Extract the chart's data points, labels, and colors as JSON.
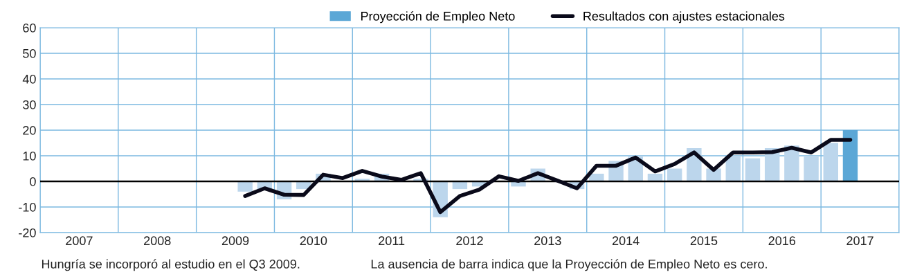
{
  "chart_data": {
    "type": "bar",
    "x": [
      2009.625,
      2009.875,
      2010.125,
      2010.375,
      2010.625,
      2010.875,
      2011.125,
      2011.375,
      2011.625,
      2011.875,
      2012.125,
      2012.375,
      2012.625,
      2012.875,
      2013.125,
      2013.375,
      2013.625,
      2013.875,
      2014.125,
      2014.375,
      2014.625,
      2014.875,
      2015.125,
      2015.375,
      2015.625,
      2015.875,
      2016.125,
      2016.375,
      2016.625,
      2016.875,
      2017.125,
      2017.375
    ],
    "series": [
      {
        "name": "Proyección de Empleo Neto",
        "color": "#5ba7d6",
        "colors": [
          "#bcd6ec",
          "#bcd6ec",
          "#bcd6ec",
          "#bcd6ec",
          "#bcd6ec",
          "#bcd6ec",
          "#bcd6ec",
          "#bcd6ec",
          "#bcd6ec",
          "#bcd6ec",
          "#bcd6ec",
          "#bcd6ec",
          "#bcd6ec",
          "#bcd6ec",
          "#bcd6ec",
          "#bcd6ec",
          "#bcd6ec",
          "#bcd6ec",
          "#bcd6ec",
          "#bcd6ec",
          "#bcd6ec",
          "#bcd6ec",
          "#bcd6ec",
          "#bcd6ec",
          "#bcd6ec",
          "#bcd6ec",
          "#bcd6ec",
          "#bcd6ec",
          "#bcd6ec",
          "#bcd6ec",
          "#bcd6ec",
          "#5ba7d6"
        ],
        "values": [
          -4,
          -3,
          -7,
          -3,
          3,
          null,
          1,
          3,
          0,
          1,
          -14,
          -3,
          -2,
          null,
          -2,
          5,
          0,
          -3,
          3,
          8,
          10,
          3,
          5,
          13,
          5,
          10,
          9,
          13,
          14,
          10,
          15,
          20
        ]
      },
      {
        "name": "Resultados con ajustes estacionales",
        "type": "line",
        "color": "#0a0a1a",
        "values": [
          -5.7,
          -2.7,
          -5.2,
          -5.3,
          2.6,
          1.3,
          4.1,
          1.9,
          0.6,
          3.2,
          -12,
          -5.7,
          -3.2,
          2,
          0.2,
          3.2,
          0.3,
          -2.7,
          6.1,
          6.1,
          9.3,
          3.9,
          6.8,
          11.3,
          4.5,
          11.3,
          11.3,
          11.4,
          13.1,
          11.3,
          16.2,
          16.2
        ]
      }
    ],
    "xlim": [
      2007,
      2018
    ],
    "xticks": [
      {
        "value": 2007,
        "label": null
      },
      {
        "value": 2007.5,
        "label": "2007"
      },
      {
        "value": 2008,
        "label": null
      },
      {
        "value": 2008.5,
        "label": "2008"
      },
      {
        "value": 2009,
        "label": null
      },
      {
        "value": 2009.5,
        "label": "2009"
      },
      {
        "value": 2010,
        "label": null
      },
      {
        "value": 2010.5,
        "label": "2010"
      },
      {
        "value": 2011,
        "label": null
      },
      {
        "value": 2011.5,
        "label": "2011"
      },
      {
        "value": 2012,
        "label": null
      },
      {
        "value": 2012.5,
        "label": "2012"
      },
      {
        "value": 2013,
        "label": null
      },
      {
        "value": 2013.5,
        "label": "2013"
      },
      {
        "value": 2014,
        "label": null
      },
      {
        "value": 2014.5,
        "label": "2014"
      },
      {
        "value": 2015,
        "label": null
      },
      {
        "value": 2015.5,
        "label": "2015"
      },
      {
        "value": 2016,
        "label": null
      },
      {
        "value": 2016.5,
        "label": "2016"
      },
      {
        "value": 2017,
        "label": null
      },
      {
        "value": 2017.5,
        "label": "2017"
      },
      {
        "value": 2018,
        "label": null
      }
    ],
    "ylim": [
      -20,
      60
    ],
    "yticks": [
      -20,
      -10,
      0,
      10,
      20,
      30,
      40,
      50,
      60
    ],
    "grid": true,
    "legend": "top right",
    "marker": "none",
    "line_style": "solid",
    "ref_lines": [
      {
        "axis": "y",
        "value": 0,
        "color": "#000000"
      }
    ],
    "annotations": [
      "Hungría se incorporó al estudio en el Q3 2009.",
      "La ausencia de barra indica que la Proyección de Empleo Neto es cero."
    ]
  }
}
